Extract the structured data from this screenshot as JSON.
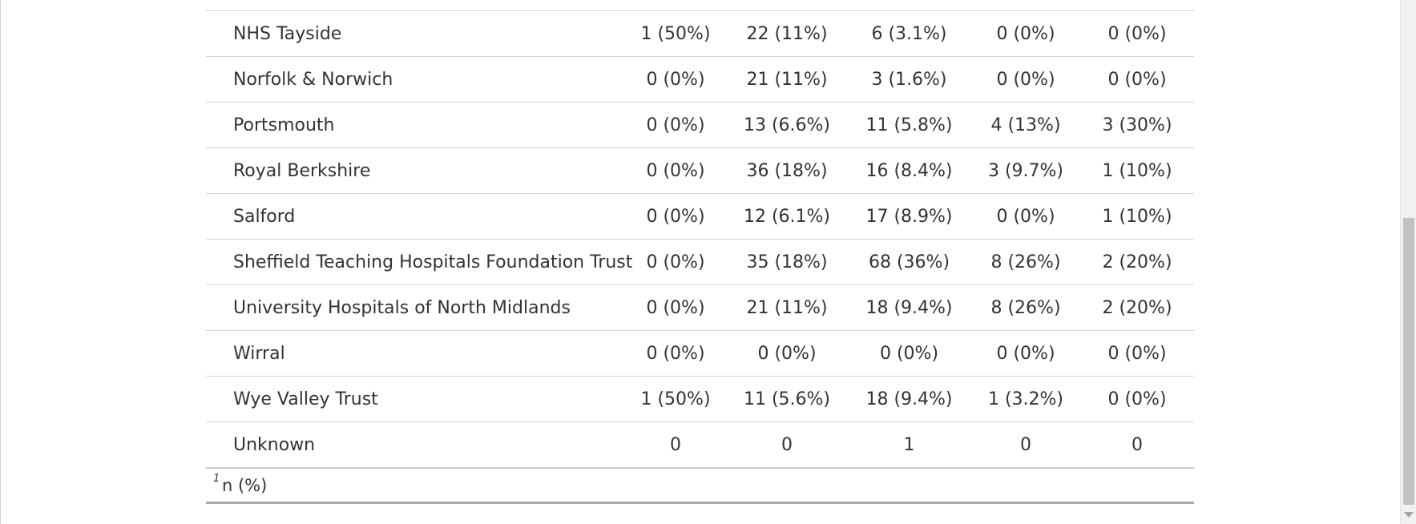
{
  "table": {
    "rows": [
      {
        "site": "NHS Tayside",
        "c1": "1 (50%)",
        "c2": "22 (11%)",
        "c3": "6 (3.1%)",
        "c4": "0 (0%)",
        "c5": "0 (0%)"
      },
      {
        "site": "Norfolk & Norwich",
        "c1": "0 (0%)",
        "c2": "21 (11%)",
        "c3": "3 (1.6%)",
        "c4": "0 (0%)",
        "c5": "0 (0%)"
      },
      {
        "site": "Portsmouth",
        "c1": "0 (0%)",
        "c2": "13 (6.6%)",
        "c3": "11 (5.8%)",
        "c4": "4 (13%)",
        "c5": "3 (30%)"
      },
      {
        "site": "Royal Berkshire",
        "c1": "0 (0%)",
        "c2": "36 (18%)",
        "c3": "16 (8.4%)",
        "c4": "3 (9.7%)",
        "c5": "1 (10%)"
      },
      {
        "site": "Salford",
        "c1": "0 (0%)",
        "c2": "12 (6.1%)",
        "c3": "17 (8.9%)",
        "c4": "0 (0%)",
        "c5": "1 (10%)"
      },
      {
        "site": "Sheffield Teaching Hospitals Foundation Trust",
        "c1": "0 (0%)",
        "c2": "35 (18%)",
        "c3": "68 (36%)",
        "c4": "8 (26%)",
        "c5": "2 (20%)"
      },
      {
        "site": "University Hospitals of North Midlands",
        "c1": "0 (0%)",
        "c2": "21 (11%)",
        "c3": "18 (9.4%)",
        "c4": "8 (26%)",
        "c5": "2 (20%)"
      },
      {
        "site": "Wirral",
        "c1": "0 (0%)",
        "c2": "0 (0%)",
        "c3": "0 (0%)",
        "c4": "0 (0%)",
        "c5": "0 (0%)"
      },
      {
        "site": "Wye Valley Trust",
        "c1": "1 (50%)",
        "c2": "11 (5.6%)",
        "c3": "18 (9.4%)",
        "c4": "1 (3.2%)",
        "c5": "0 (0%)"
      },
      {
        "site": "Unknown",
        "c1": "0",
        "c2": "0",
        "c3": "1",
        "c4": "0",
        "c5": "0"
      }
    ]
  },
  "footnote": {
    "marker": "1",
    "text": "n (%)"
  }
}
